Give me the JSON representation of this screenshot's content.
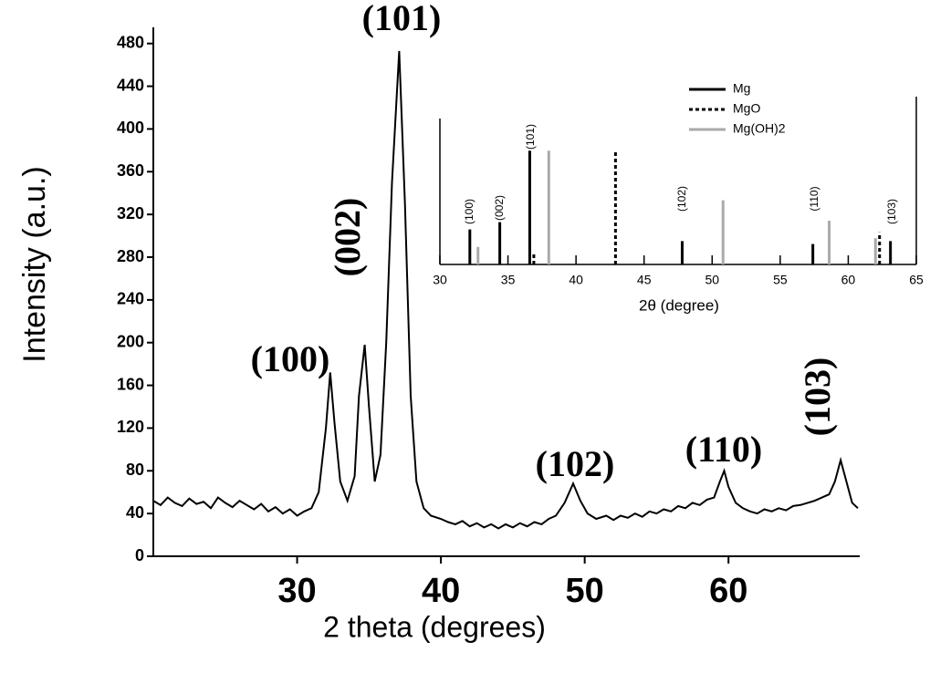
{
  "chart_data": [
    {
      "type": "line",
      "xlabel": "2 theta (degrees)",
      "ylabel": "Intensity (a.u.)",
      "color": "#000000",
      "x": [
        20,
        20.5,
        21,
        21.5,
        22,
        22.5,
        23,
        23.5,
        24,
        24.5,
        25,
        25.5,
        26,
        26.5,
        27,
        27.5,
        28,
        28.5,
        29,
        29.5,
        30,
        30.5,
        31,
        31.5,
        32,
        32.3,
        32.6,
        33,
        33.5,
        34,
        34.3,
        34.7,
        35,
        35.4,
        35.8,
        36.2,
        36.6,
        37.1,
        37.5,
        37.9,
        38.3,
        38.8,
        39.3,
        40,
        40.5,
        41,
        41.5,
        42,
        42.5,
        43,
        43.5,
        44,
        44.5,
        45,
        45.5,
        46,
        46.5,
        47,
        47.5,
        48,
        48.6,
        49.2,
        49.7,
        50.2,
        50.8,
        51.5,
        52,
        52.5,
        53,
        53.5,
        54,
        54.5,
        55,
        55.5,
        56,
        56.5,
        57,
        57.5,
        58,
        58.5,
        59,
        59.4,
        59.7,
        60,
        60.5,
        61,
        61.5,
        62,
        62.5,
        63,
        63.5,
        64,
        64.5,
        65,
        65.5,
        66,
        66.5,
        67,
        67.4,
        67.8,
        68.2,
        68.6,
        69
      ],
      "values": [
        52,
        48,
        55,
        50,
        47,
        54,
        49,
        51,
        45,
        55,
        50,
        46,
        52,
        48,
        44,
        49,
        42,
        46,
        40,
        44,
        38,
        42,
        45,
        60,
        120,
        172,
        125,
        70,
        52,
        75,
        150,
        198,
        140,
        70,
        95,
        200,
        350,
        473,
        330,
        150,
        70,
        45,
        38,
        35,
        32,
        30,
        33,
        28,
        31,
        27,
        30,
        26,
        30,
        27,
        31,
        28,
        32,
        30,
        35,
        38,
        50,
        68,
        52,
        40,
        35,
        38,
        34,
        38,
        36,
        40,
        37,
        42,
        40,
        44,
        42,
        47,
        45,
        50,
        48,
        53,
        55,
        70,
        80,
        65,
        50,
        45,
        42,
        40,
        44,
        42,
        45,
        43,
        47,
        48,
        50,
        52,
        55,
        58,
        70,
        90,
        70,
        50,
        45
      ],
      "xlim": [
        20,
        69
      ],
      "xticks": [
        30,
        40,
        50,
        60
      ],
      "ylim": [
        0,
        490
      ],
      "yticks": [
        0,
        40,
        80,
        120,
        160,
        200,
        240,
        280,
        320,
        360,
        400,
        440,
        480
      ],
      "annotations": [
        "(101)",
        "(002)",
        "(100)",
        "(102)",
        "(110)",
        "(103)"
      ]
    },
    {
      "type": "stick",
      "xlabel": "2θ (degree)",
      "series": [
        {
          "name": "Mg",
          "color": "#000000",
          "line_style": "solid",
          "x": [
            32.2,
            34.4,
            36.6,
            47.8,
            57.4,
            63.1
          ],
          "values": [
            24,
            29,
            78,
            16,
            14,
            16
          ]
        },
        {
          "name": "MgO",
          "color": "#000000",
          "line_style": "dashed",
          "x": [
            36.9,
            42.9,
            62.3
          ],
          "values": [
            8,
            77,
            22
          ]
        },
        {
          "name": "Mg(OH)2",
          "color": "#aaaaaa",
          "line_style": "solid",
          "x": [
            32.8,
            38.0,
            50.8,
            58.6,
            62.0
          ],
          "values": [
            12,
            78,
            44,
            30,
            18
          ]
        }
      ],
      "xlim": [
        30,
        65
      ],
      "xticks": [
        30,
        35,
        40,
        45,
        50,
        55,
        60,
        65
      ],
      "ylim": [
        0,
        100
      ],
      "annotations": [
        "(100)",
        "(002)",
        "(101)",
        "(102)",
        "(110)",
        "(103)"
      ]
    }
  ]
}
